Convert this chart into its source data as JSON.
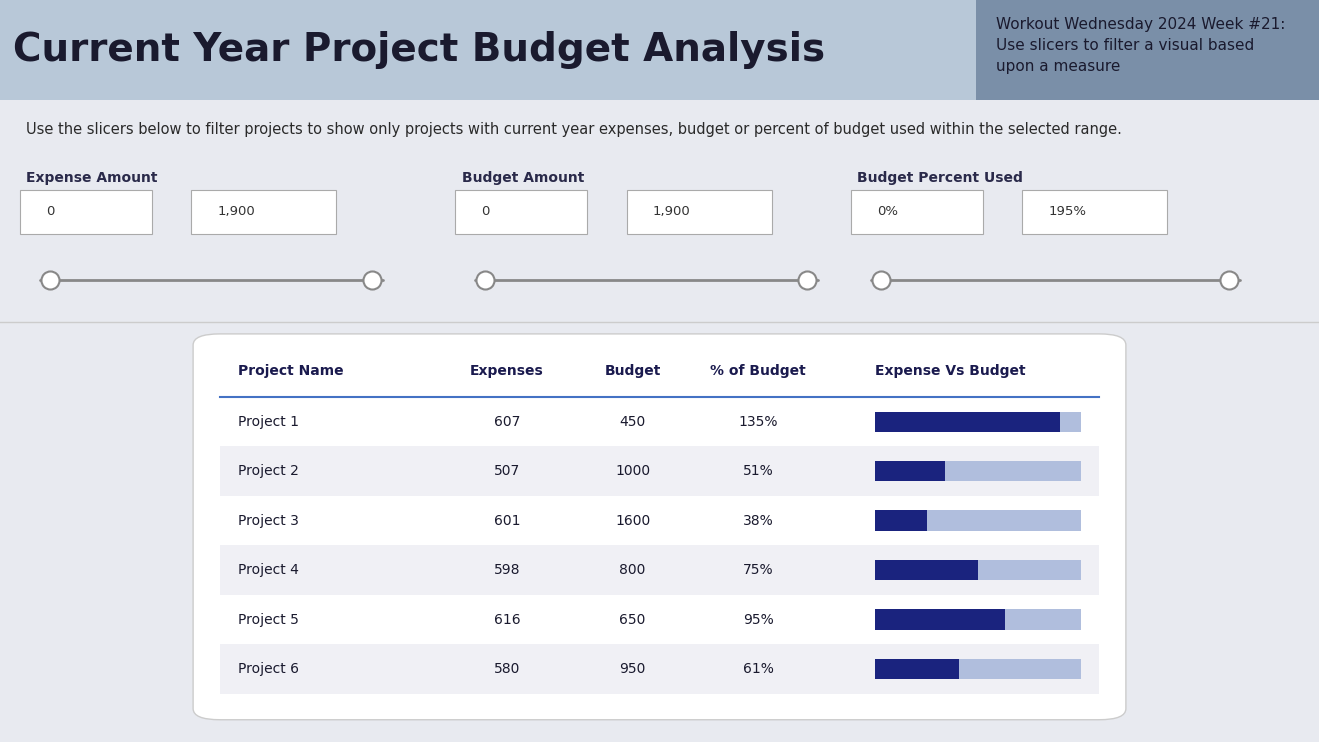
{
  "title": "Current Year Project Budget Analysis",
  "subtitle": "Workout Wednesday 2024 Week #21:\nUse slicers to filter a visual based\nupon a measure",
  "instruction": "Use the slicers below to filter projects to show only projects with current year expenses, budget or percent of budget used within the selected range.",
  "slicers": [
    {
      "label": "Expense Amount",
      "min": "0",
      "max": "1,900"
    },
    {
      "label": "Budget Amount",
      "min": "0",
      "max": "1,900"
    },
    {
      "label": "Budget Percent Used",
      "min": "0%",
      "max": "195%"
    }
  ],
  "table_headers": [
    "Project Name",
    "Expenses",
    "Budget",
    "% of Budget",
    "Expense Vs Budget"
  ],
  "table_data": [
    {
      "name": "Project 1",
      "expenses": 607,
      "budget": 450,
      "pct": "135%",
      "pct_val": 1.35
    },
    {
      "name": "Project 2",
      "expenses": 507,
      "budget": 1000,
      "pct": "51%",
      "pct_val": 0.51
    },
    {
      "name": "Project 3",
      "expenses": 601,
      "budget": 1600,
      "pct": "38%",
      "pct_val": 0.38
    },
    {
      "name": "Project 4",
      "expenses": 598,
      "budget": 800,
      "pct": "75%",
      "pct_val": 0.75
    },
    {
      "name": "Project 5",
      "expenses": 616,
      "budget": 650,
      "pct": "95%",
      "pct_val": 0.95
    },
    {
      "name": "Project 6",
      "expenses": 580,
      "budget": 950,
      "pct": "61%",
      "pct_val": 0.61
    }
  ],
  "bg_color": "#e8eaf0",
  "title_left_bg": "#b8c8d8",
  "title_right_bg": "#7a8fa8",
  "table_bg": "#ffffff",
  "row_alt_bg": "#f0f0f5",
  "bar_fill": "#1a237e",
  "bar_bg": "#b0bedd",
  "bar_max_pct": 1.5,
  "header_line_color": "#4472c4",
  "sep_line_color": "#cccccc"
}
